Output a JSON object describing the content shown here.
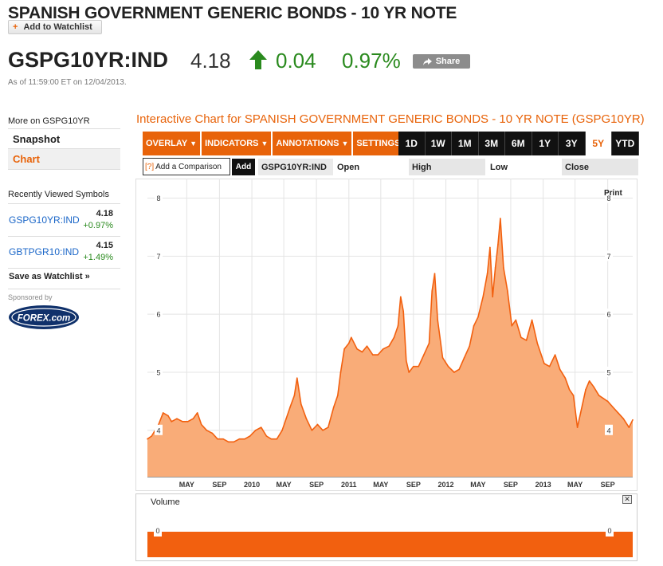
{
  "header": {
    "title": "SPANISH GOVERNMENT GENERIC BONDS - 10 YR NOTE",
    "watchlist_label": "Add to Watchlist",
    "ticker": "GSPG10YR:IND",
    "price": "4.18",
    "change": "0.04",
    "change_pct": "0.97%",
    "share_label": "Share",
    "as_of": "As of 11:59:00 ET on 12/04/2013.",
    "up_color": "#2a8a1e",
    "icons": {
      "watchlist": "plus-icon",
      "change": "up-arrow-icon",
      "share": "share-arrow-icon"
    }
  },
  "sidebar": {
    "more_on": "More on GSPG10YR",
    "items": [
      {
        "label": "Snapshot",
        "active": false
      },
      {
        "label": "Chart",
        "active": true
      }
    ],
    "recent_title": "Recently Viewed Symbols",
    "recent": [
      {
        "symbol": "GSPG10YR:IND",
        "price": "4.18",
        "change": "+0.97%"
      },
      {
        "symbol": "GBTPGR10:IND",
        "price": "4.15",
        "change": "+1.49%"
      }
    ],
    "save_watchlist": "Save as Watchlist",
    "save_glyph": "»",
    "sponsored": "Sponsored by",
    "sponsor_logo_text": "FOREX.com"
  },
  "chart_panel": {
    "title": "Interactive Chart for SPANISH GOVERNMENT GENERIC BONDS - 10 YR NOTE (GSPG10YR)",
    "dropdowns": [
      "OVERLAY",
      "INDICATORS",
      "ANNOTATIONS",
      "SETTINGS"
    ],
    "ranges": [
      "1D",
      "1W",
      "1M",
      "3M",
      "6M",
      "1Y",
      "3Y",
      "5Y",
      "YTD"
    ],
    "active_range": "5Y",
    "compare_hint": "[?]",
    "compare_placeholder": "Add a Comparison",
    "add_label": "Add",
    "ohlc": {
      "symbol": "GSPG10YR:IND",
      "open": "Open",
      "high": "High",
      "low": "Low",
      "close": "Close"
    },
    "print_label": "Print",
    "accent_color": "#e8630a",
    "volume_label": "Volume",
    "volume_close_glyph": "✕",
    "volume_tick": "0"
  },
  "chart_data": {
    "type": "area",
    "title": "",
    "xlabel": "",
    "ylabel": "",
    "ylim": [
      3.2,
      8.2
    ],
    "yticks": [
      4,
      5,
      6,
      7,
      8
    ],
    "ytick_labels": [
      "4",
      "5",
      "6",
      "7",
      "8"
    ],
    "x_tick_labels": [
      "MAY",
      "SEP",
      "2010",
      "MAY",
      "SEP",
      "2011",
      "MAY",
      "SEP",
      "2012",
      "MAY",
      "SEP",
      "2013",
      "MAY",
      "SEP"
    ],
    "x_tick_dates": [
      "2009-05-01",
      "2009-09-01",
      "2010-01-01",
      "2010-05-01",
      "2010-09-01",
      "2011-01-01",
      "2011-05-01",
      "2011-09-01",
      "2012-01-01",
      "2012-05-01",
      "2012-09-01",
      "2013-01-01",
      "2013-05-01",
      "2013-09-01"
    ],
    "xlim": [
      "2008-12-04",
      "2013-12-04"
    ],
    "grid": true,
    "fill_color": "#f9ac78",
    "line_color": "#f2600f",
    "series": [
      {
        "x": [
          "2008-12-04",
          "2008-12-20",
          "2009-01-15",
          "2009-02-01",
          "2009-02-20",
          "2009-03-05",
          "2009-03-25",
          "2009-04-15",
          "2009-05-05",
          "2009-05-25",
          "2009-06-10",
          "2009-06-25",
          "2009-07-15",
          "2009-08-05",
          "2009-08-25",
          "2009-09-15",
          "2009-10-05",
          "2009-10-25",
          "2009-11-15",
          "2009-12-05",
          "2009-12-25",
          "2010-01-15",
          "2010-02-05",
          "2010-02-25",
          "2010-03-15",
          "2010-04-05",
          "2010-04-25",
          "2010-05-10",
          "2010-05-25",
          "2010-06-10",
          "2010-06-20",
          "2010-07-05",
          "2010-07-25",
          "2010-08-15",
          "2010-09-05",
          "2010-09-25",
          "2010-10-15",
          "2010-11-05",
          "2010-11-20",
          "2010-12-01",
          "2010-12-15",
          "2011-01-01",
          "2011-01-10",
          "2011-02-01",
          "2011-02-20",
          "2011-03-10",
          "2011-04-01",
          "2011-04-20",
          "2011-05-10",
          "2011-06-01",
          "2011-06-20",
          "2011-07-05",
          "2011-07-15",
          "2011-07-25",
          "2011-08-05",
          "2011-08-15",
          "2011-09-01",
          "2011-09-20",
          "2011-10-10",
          "2011-10-30",
          "2011-11-10",
          "2011-11-20",
          "2011-12-01",
          "2011-12-20",
          "2012-01-10",
          "2012-02-01",
          "2012-02-20",
          "2012-03-10",
          "2012-03-30",
          "2012-04-15",
          "2012-05-01",
          "2012-05-20",
          "2012-06-05",
          "2012-06-15",
          "2012-06-25",
          "2012-07-05",
          "2012-07-15",
          "2012-07-24",
          "2012-08-05",
          "2012-08-20",
          "2012-09-05",
          "2012-09-20",
          "2012-10-10",
          "2012-10-30",
          "2012-11-20",
          "2012-12-10",
          "2013-01-05",
          "2013-01-25",
          "2013-02-15",
          "2013-03-05",
          "2013-03-25",
          "2013-04-10",
          "2013-04-25",
          "2013-05-10",
          "2013-05-22",
          "2013-06-10",
          "2013-06-24",
          "2013-07-10",
          "2013-07-30",
          "2013-08-15",
          "2013-09-01",
          "2013-09-20",
          "2013-10-10",
          "2013-10-30",
          "2013-11-20",
          "2013-12-04"
        ],
        "values": [
          3.85,
          3.9,
          4.1,
          4.3,
          4.25,
          4.15,
          4.2,
          4.15,
          4.15,
          4.2,
          4.3,
          4.1,
          4.0,
          3.95,
          3.85,
          3.85,
          3.8,
          3.8,
          3.85,
          3.85,
          3.9,
          4.0,
          4.05,
          3.9,
          3.85,
          3.85,
          4.0,
          4.2,
          4.4,
          4.6,
          4.9,
          4.45,
          4.2,
          4.0,
          4.1,
          4.0,
          4.05,
          4.4,
          4.6,
          5.0,
          5.4,
          5.5,
          5.6,
          5.4,
          5.35,
          5.45,
          5.3,
          5.3,
          5.4,
          5.45,
          5.6,
          5.8,
          6.3,
          6.05,
          5.2,
          5.0,
          5.1,
          5.1,
          5.3,
          5.5,
          6.4,
          6.7,
          5.9,
          5.25,
          5.1,
          5.0,
          5.05,
          5.25,
          5.45,
          5.8,
          5.95,
          6.3,
          6.7,
          7.15,
          6.3,
          6.8,
          7.2,
          7.65,
          6.8,
          6.4,
          5.8,
          5.9,
          5.6,
          5.55,
          5.9,
          5.5,
          5.15,
          5.1,
          5.3,
          5.05,
          4.9,
          4.7,
          4.6,
          4.05,
          4.3,
          4.7,
          4.85,
          4.75,
          4.6,
          4.55,
          4.5,
          4.4,
          4.3,
          4.2,
          4.05,
          4.18
        ]
      }
    ]
  }
}
